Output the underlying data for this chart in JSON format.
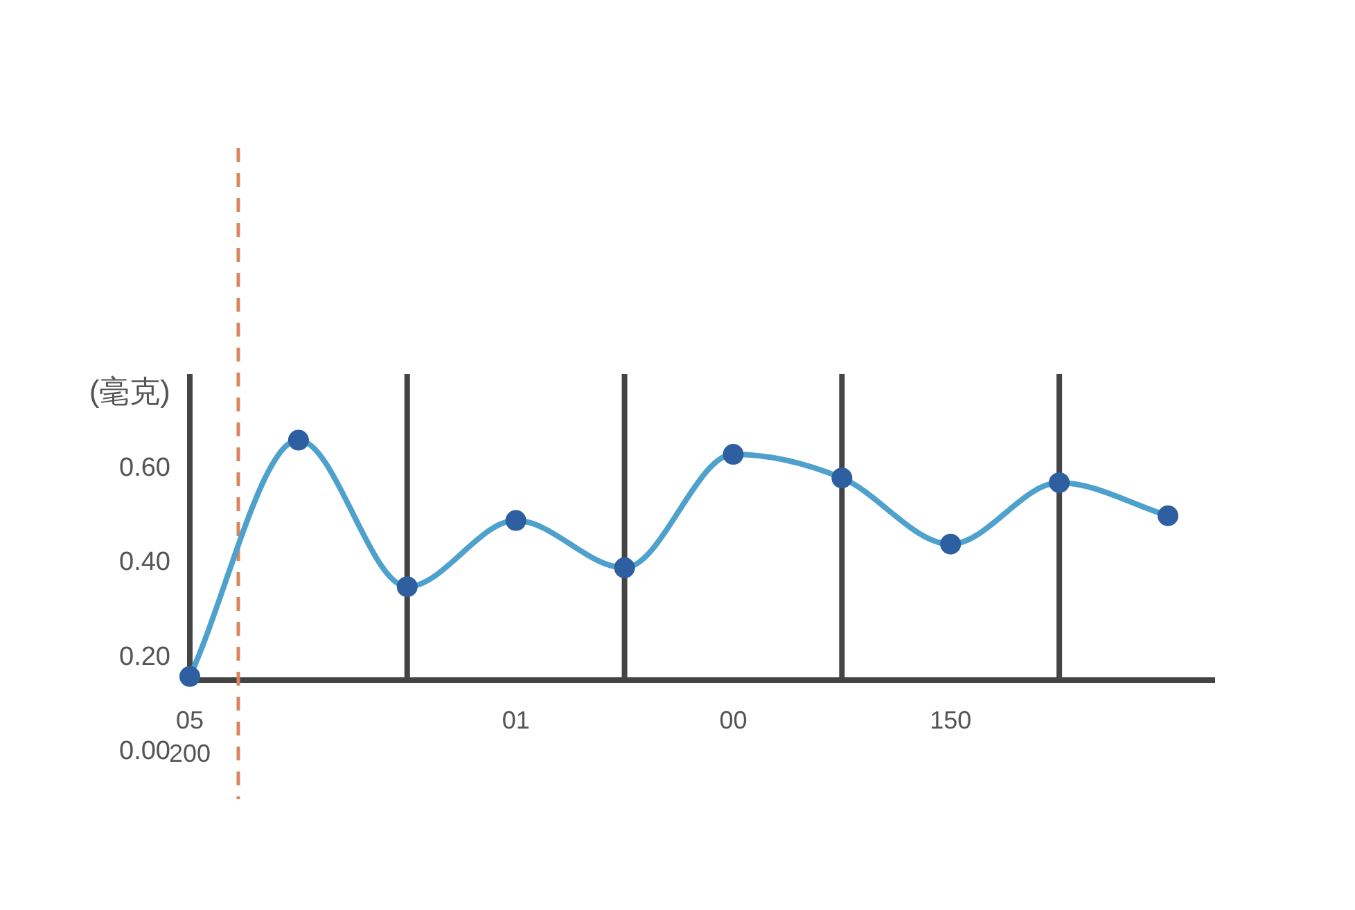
{
  "chart_data": {
    "type": "line",
    "categories": [
      "05\n200",
      null,
      null,
      "01",
      null,
      "00",
      null,
      "150",
      null,
      null
    ],
    "series": [
      {
        "color": "#4ea1cc",
        "colors": [
          "#2e5fa0",
          "#2e5fa0",
          "#2e5fa0",
          "#2e5fa0",
          "#2e5fa0",
          "#2e5fa0",
          "#2e5fa0",
          "#2e5fa0",
          "#2e5fa0",
          "#2e5fa0"
        ],
        "values": [
          0.16,
          0.66,
          0.35,
          0.49,
          0.39,
          0.63,
          0.58,
          0.44,
          0.57,
          0.5
        ]
      }
    ],
    "ylabel": "(毫克)",
    "ylim": [
      0,
      0.8
    ],
    "yticks": [
      {
        "value": 0,
        "label": "0.00"
      },
      {
        "value": 0.2,
        "label": "0.20"
      },
      {
        "value": 0.4,
        "label": "0.40"
      },
      {
        "value": 0.6,
        "label": "0.60"
      }
    ],
    "marker": "circle",
    "grid": "x",
    "legend": false
  }
}
